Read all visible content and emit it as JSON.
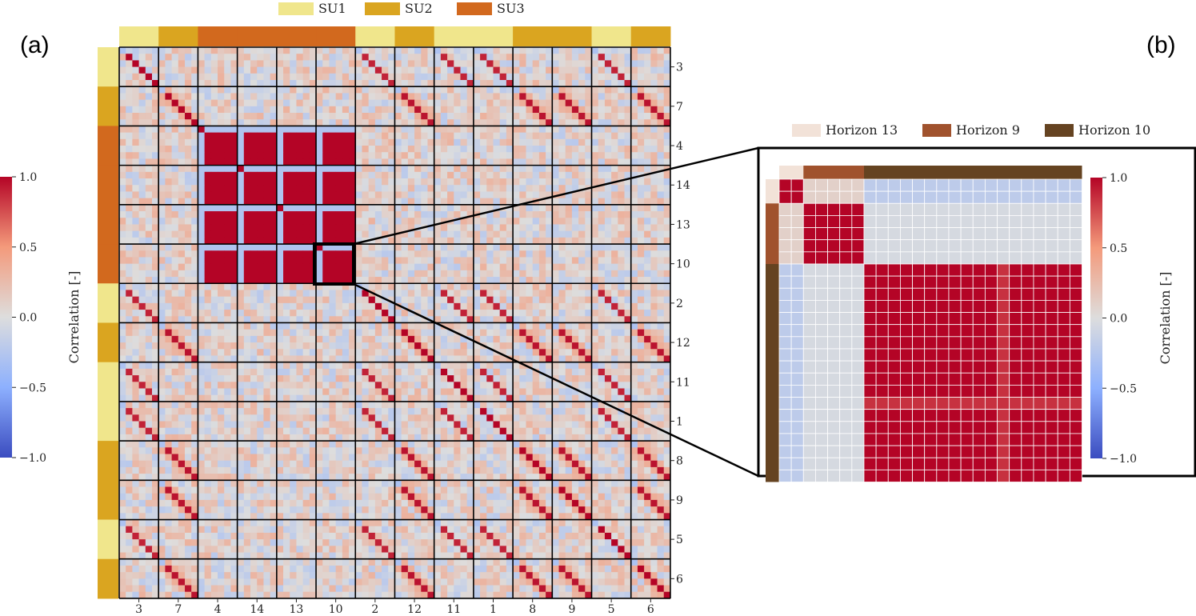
{
  "panels": {
    "a": "(a)",
    "b": "(b)"
  },
  "legend_a": [
    {
      "label": "SU1",
      "color": "#f0e68c"
    },
    {
      "label": "SU2",
      "color": "#daa520"
    },
    {
      "label": "SU3",
      "color": "#d2691e"
    }
  ],
  "legend_b": [
    {
      "label": "Horizon 13",
      "color": "#f2e2d8"
    },
    {
      "label": "Horizon 9",
      "color": "#a0522d"
    },
    {
      "label": "Horizon 10",
      "color": "#654321"
    }
  ],
  "colorbar": {
    "label": "Correlation [-]",
    "ticks": [
      "1.0",
      "0.5",
      "0.0",
      "−0.5",
      "−1.0"
    ],
    "range": [
      -1.0,
      1.0
    ],
    "cmap": "coolwarm"
  },
  "chart_data": [
    {
      "type": "heatmap",
      "panel": "a",
      "title": "",
      "block_labels": [
        "3",
        "7",
        "4",
        "14",
        "13",
        "10",
        "2",
        "12",
        "11",
        "1",
        "8",
        "9",
        "5",
        "6"
      ],
      "block_groups": [
        "SU1",
        "SU2",
        "SU3",
        "SU3",
        "SU3",
        "SU3",
        "SU1",
        "SU2",
        "SU1",
        "SU1",
        "SU2",
        "SU2",
        "SU1",
        "SU2"
      ],
      "cells_per_block": 6,
      "within_su3_correlation": 1.0,
      "zoom_region": {
        "block": "10"
      }
    },
    {
      "type": "heatmap",
      "panel": "b",
      "title": "",
      "horizon_groups": [
        {
          "label": "Horizon 13",
          "count": 2
        },
        {
          "label": "Horizon 9",
          "count": 5
        },
        {
          "label": "Horizon 10",
          "count": 18
        }
      ],
      "within_group_correlation": 1.0,
      "h13_vs_h9": 0.1,
      "h13_vs_h10": -0.2,
      "h9_vs_h10": -0.05
    }
  ]
}
